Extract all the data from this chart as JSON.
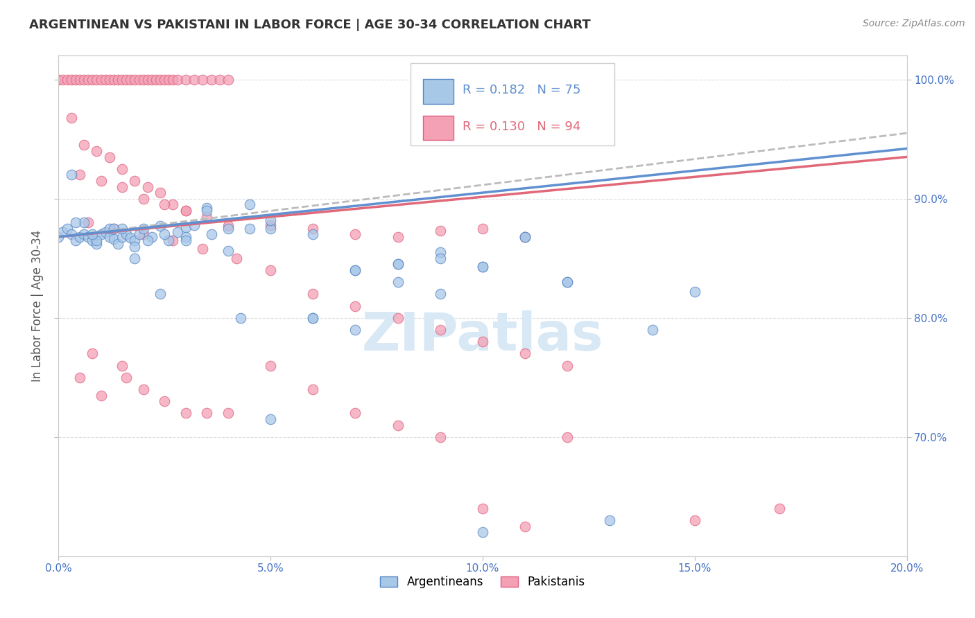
{
  "title": "ARGENTINEAN VS PAKISTANI IN LABOR FORCE | AGE 30-34 CORRELATION CHART",
  "source": "Source: ZipAtlas.com",
  "ylabel": "In Labor Force | Age 30-34",
  "legend_argentinean": "Argentineans",
  "legend_pakistani": "Pakistanis",
  "R_argentinean": 0.182,
  "N_argentinean": 75,
  "R_pakistani": 0.13,
  "N_pakistani": 94,
  "xlim": [
    0.0,
    0.2
  ],
  "ylim": [
    0.6,
    1.02
  ],
  "yticks": [
    0.7,
    0.8,
    0.9,
    1.0
  ],
  "ytick_labels": [
    "70.0%",
    "80.0%",
    "90.0%",
    "100.0%"
  ],
  "xticks": [
    0.0,
    0.05,
    0.1,
    0.15,
    0.2
  ],
  "xtick_labels": [
    "0.0%",
    "5.0%",
    "10.0%",
    "15.0%",
    "20.0%"
  ],
  "color_argentinean_fill": "#A8C8E8",
  "color_pakistani_fill": "#F4A0B5",
  "color_argentinean_edge": "#5585C5",
  "color_pakistani_edge": "#E06080",
  "color_argentinean_line": "#6090D0",
  "color_pakistani_line": "#E06878",
  "watermark_color": "#D8E8F5",
  "background_color": "#FFFFFF",
  "grid_color": "#DDDDDD",
  "tick_color": "#4472C4",
  "title_color": "#333333",
  "source_color": "#888888",
  "arg_x": [
    0.0,
    0.001,
    0.002,
    0.003,
    0.004,
    0.005,
    0.006,
    0.007,
    0.008,
    0.009,
    0.01,
    0.011,
    0.012,
    0.013,
    0.014,
    0.015,
    0.016,
    0.017,
    0.018,
    0.019,
    0.02,
    0.022,
    0.024,
    0.026,
    0.028,
    0.03,
    0.032,
    0.035,
    0.04,
    0.045,
    0.05,
    0.06,
    0.07,
    0.08,
    0.09,
    0.1,
    0.11,
    0.12,
    0.14,
    0.15,
    0.003,
    0.006,
    0.009,
    0.012,
    0.015,
    0.018,
    0.021,
    0.025,
    0.03,
    0.035,
    0.04,
    0.045,
    0.05,
    0.06,
    0.07,
    0.08,
    0.09,
    0.1,
    0.11,
    0.12,
    0.004,
    0.008,
    0.013,
    0.018,
    0.024,
    0.03,
    0.036,
    0.043,
    0.05,
    0.06,
    0.07,
    0.08,
    0.09,
    0.1,
    0.13
  ],
  "arg_y": [
    0.868,
    0.872,
    0.875,
    0.87,
    0.865,
    0.868,
    0.87,
    0.868,
    0.865,
    0.862,
    0.87,
    0.872,
    0.868,
    0.866,
    0.862,
    0.868,
    0.87,
    0.867,
    0.865,
    0.87,
    0.875,
    0.868,
    0.877,
    0.865,
    0.872,
    0.876,
    0.878,
    0.892,
    0.875,
    0.895,
    0.875,
    0.8,
    0.84,
    0.845,
    0.855,
    0.843,
    0.868,
    0.83,
    0.79,
    0.822,
    0.92,
    0.88,
    0.865,
    0.875,
    0.875,
    0.85,
    0.865,
    0.87,
    0.868,
    0.89,
    0.856,
    0.875,
    0.882,
    0.87,
    0.84,
    0.845,
    0.85,
    0.843,
    0.868,
    0.83,
    0.88,
    0.87,
    0.875,
    0.86,
    0.82,
    0.865,
    0.87,
    0.8,
    0.715,
    0.8,
    0.79,
    0.83,
    0.82,
    0.62,
    0.63
  ],
  "pak_x": [
    0.0,
    0.001,
    0.002,
    0.003,
    0.004,
    0.005,
    0.006,
    0.007,
    0.008,
    0.009,
    0.01,
    0.011,
    0.012,
    0.013,
    0.014,
    0.015,
    0.016,
    0.017,
    0.018,
    0.019,
    0.02,
    0.021,
    0.022,
    0.023,
    0.024,
    0.025,
    0.026,
    0.027,
    0.028,
    0.03,
    0.032,
    0.034,
    0.036,
    0.038,
    0.04,
    0.003,
    0.006,
    0.009,
    0.012,
    0.015,
    0.018,
    0.021,
    0.024,
    0.027,
    0.03,
    0.005,
    0.01,
    0.015,
    0.02,
    0.025,
    0.03,
    0.035,
    0.04,
    0.05,
    0.06,
    0.07,
    0.08,
    0.09,
    0.1,
    0.11,
    0.007,
    0.013,
    0.02,
    0.027,
    0.034,
    0.042,
    0.05,
    0.06,
    0.07,
    0.08,
    0.09,
    0.1,
    0.11,
    0.12,
    0.005,
    0.01,
    0.015,
    0.02,
    0.03,
    0.04,
    0.05,
    0.06,
    0.07,
    0.08,
    0.09,
    0.1,
    0.11,
    0.12,
    0.15,
    0.17,
    0.008,
    0.016,
    0.025,
    0.035
  ],
  "pak_y": [
    1.0,
    1.0,
    1.0,
    1.0,
    1.0,
    1.0,
    1.0,
    1.0,
    1.0,
    1.0,
    1.0,
    1.0,
    1.0,
    1.0,
    1.0,
    1.0,
    1.0,
    1.0,
    1.0,
    1.0,
    1.0,
    1.0,
    1.0,
    1.0,
    1.0,
    1.0,
    1.0,
    1.0,
    1.0,
    1.0,
    1.0,
    1.0,
    1.0,
    1.0,
    1.0,
    0.968,
    0.945,
    0.94,
    0.935,
    0.925,
    0.915,
    0.91,
    0.905,
    0.895,
    0.89,
    0.92,
    0.915,
    0.91,
    0.9,
    0.895,
    0.89,
    0.885,
    0.877,
    0.878,
    0.875,
    0.87,
    0.868,
    0.873,
    0.875,
    0.868,
    0.88,
    0.875,
    0.87,
    0.865,
    0.858,
    0.85,
    0.84,
    0.82,
    0.81,
    0.8,
    0.79,
    0.78,
    0.77,
    0.76,
    0.75,
    0.735,
    0.76,
    0.74,
    0.72,
    0.72,
    0.76,
    0.74,
    0.72,
    0.71,
    0.7,
    0.64,
    0.625,
    0.7,
    0.63,
    0.64,
    0.77,
    0.75,
    0.73,
    0.72
  ]
}
